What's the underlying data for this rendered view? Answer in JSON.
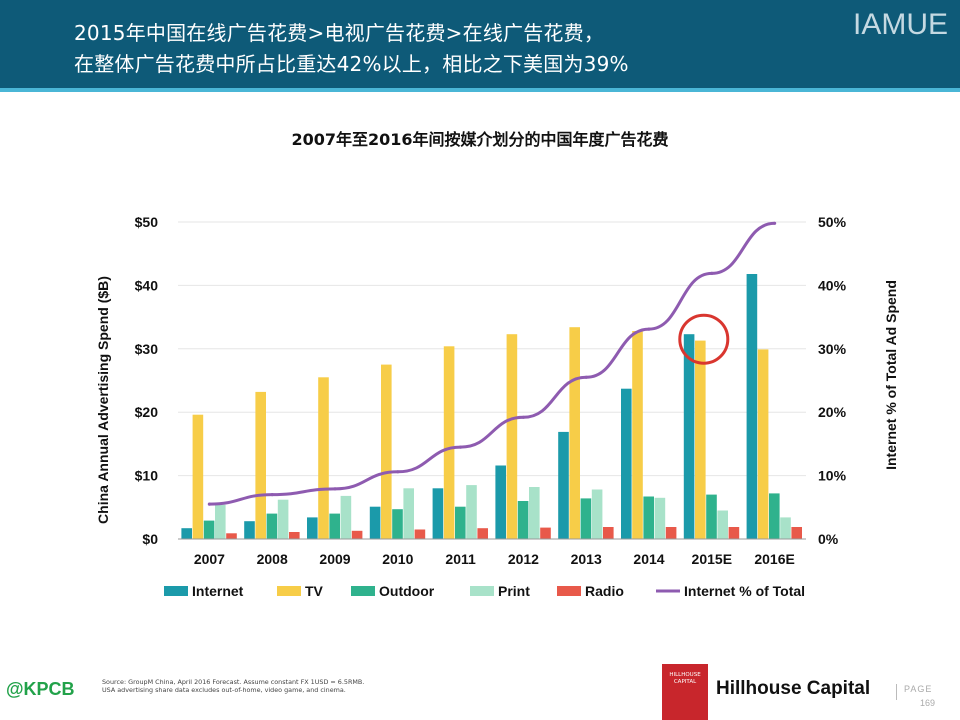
{
  "header": {
    "line1": "2015年中国在线广告花费>电视广告花费>在线广告花费，",
    "line2": "在整体广告花费中所占比重达42%以上，相比之下美国为39%",
    "brand": "IAMUE"
  },
  "chart_data": {
    "type": "bar",
    "title": "2007年至2016年间按媒介划分的中国年度广告花费",
    "ylabel": "China Annual Advertising Spend ($B)",
    "y2label": "Internet % of Total Ad Spend",
    "ylim": [
      0,
      50
    ],
    "y2lim": [
      0,
      50
    ],
    "yticks": [
      "$0",
      "$10",
      "$20",
      "$30",
      "$40",
      "$50"
    ],
    "y2ticks": [
      "0%",
      "10%",
      "20%",
      "30%",
      "40%",
      "50%"
    ],
    "categories": [
      "2007",
      "2008",
      "2009",
      "2010",
      "2011",
      "2012",
      "2013",
      "2014",
      "2015E",
      "2016E"
    ],
    "series": [
      {
        "name": "Internet",
        "type": "bar",
        "color": "#1b9aaa",
        "values": [
          1.7,
          2.8,
          3.4,
          5.1,
          8.0,
          11.6,
          16.9,
          23.7,
          32.3,
          41.8
        ]
      },
      {
        "name": "TV",
        "type": "bar",
        "color": "#f7cd48",
        "values": [
          19.6,
          23.2,
          25.5,
          27.5,
          30.4,
          32.3,
          33.4,
          32.8,
          31.3,
          29.9
        ]
      },
      {
        "name": "Outdoor",
        "type": "bar",
        "color": "#2fb28d",
        "values": [
          2.9,
          4.0,
          4.0,
          4.7,
          5.1,
          6.0,
          6.4,
          6.7,
          7.0,
          7.2
        ]
      },
      {
        "name": "Print",
        "type": "bar",
        "color": "#a8e2c9",
        "values": [
          5.4,
          6.2,
          6.8,
          8.0,
          8.5,
          8.2,
          7.8,
          6.5,
          4.5,
          3.4
        ]
      },
      {
        "name": "Radio",
        "type": "bar",
        "color": "#e8594a",
        "values": [
          0.9,
          1.1,
          1.3,
          1.5,
          1.7,
          1.8,
          1.9,
          1.9,
          1.9,
          1.9
        ]
      },
      {
        "name": "Internet % of Total",
        "type": "line",
        "axis": "right",
        "color": "#8e5bb0",
        "values": [
          5.5,
          7.0,
          7.9,
          10.6,
          14.5,
          19.2,
          25.5,
          33.1,
          41.9,
          49.8
        ]
      }
    ],
    "legend_position": "bottom",
    "highlight": {
      "category": "2015E",
      "color": "#d9362f"
    }
  },
  "footer": {
    "handle": "@KPCB",
    "source_line1": "Source: GroupM China, April 2016 Forecast. Assume constant FX 1USD = 6.5RMB.",
    "source_line2": "USA advertising share data excludes out-of-home, video game, and cinema.",
    "logo_text": "HILLHOUSE CAPITAL",
    "company": "Hillhouse Capital",
    "page_label": "PAGE",
    "page_number": "169"
  }
}
